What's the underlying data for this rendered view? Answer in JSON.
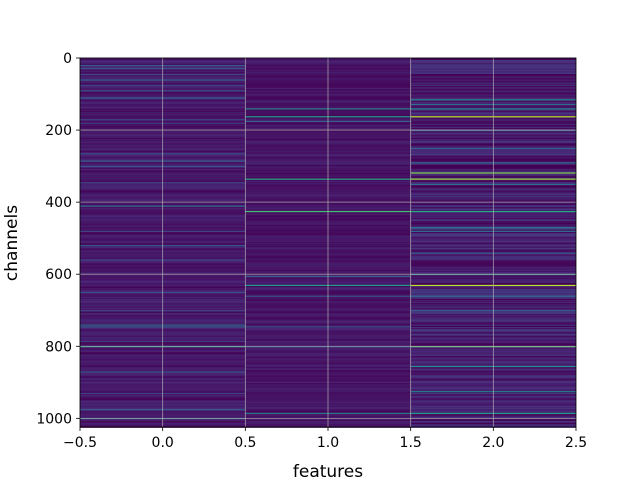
{
  "chart_data": {
    "type": "heatmap",
    "title": "",
    "xlabel": "features",
    "ylabel": "channels",
    "xlim": [
      -0.5,
      2.5
    ],
    "ylim": [
      1024,
      0
    ],
    "x_ticks": [
      -0.5,
      0.0,
      0.5,
      1.0,
      1.5,
      2.0,
      2.5
    ],
    "x_tick_labels": [
      "−0.5",
      "0.0",
      "0.5",
      "1.0",
      "1.5",
      "2.0",
      "2.5"
    ],
    "y_ticks": [
      0,
      200,
      400,
      600,
      800,
      1000
    ],
    "y_tick_labels": [
      "0",
      "200",
      "400",
      "600",
      "800",
      "1000"
    ],
    "grid": true,
    "colormap": "viridis",
    "n_rows": 1024,
    "columns": [
      {
        "feature": 0,
        "base_value": 0.06,
        "noise": 0.05,
        "highlighted_rows": [
          {
            "row": 20,
            "value": 0.3
          },
          {
            "row": 28,
            "value": 0.25
          },
          {
            "row": 45,
            "value": 0.2
          },
          {
            "row": 60,
            "value": 0.3
          },
          {
            "row": 75,
            "value": 0.2
          },
          {
            "row": 90,
            "value": 0.25
          },
          {
            "row": 110,
            "value": 0.3
          },
          {
            "row": 170,
            "value": 0.2
          },
          {
            "row": 180,
            "value": 0.2
          },
          {
            "row": 265,
            "value": 0.25
          },
          {
            "row": 285,
            "value": 0.3
          },
          {
            "row": 300,
            "value": 0.25
          },
          {
            "row": 345,
            "value": 0.2
          },
          {
            "row": 410,
            "value": 0.35
          },
          {
            "row": 480,
            "value": 0.2
          },
          {
            "row": 520,
            "value": 0.3
          },
          {
            "row": 560,
            "value": 0.2
          },
          {
            "row": 650,
            "value": 0.25
          },
          {
            "row": 700,
            "value": 0.2
          },
          {
            "row": 740,
            "value": 0.35
          },
          {
            "row": 745,
            "value": 0.3
          },
          {
            "row": 785,
            "value": 0.2
          },
          {
            "row": 800,
            "value": 0.55
          },
          {
            "row": 870,
            "value": 0.25
          },
          {
            "row": 930,
            "value": 0.2
          },
          {
            "row": 975,
            "value": 0.3
          },
          {
            "row": 1000,
            "value": 0.35
          }
        ]
      },
      {
        "feature": 1,
        "base_value": 0.05,
        "noise": 0.04,
        "highlighted_rows": [
          {
            "row": 140,
            "value": 0.45
          },
          {
            "row": 162,
            "value": 0.55
          },
          {
            "row": 175,
            "value": 0.3
          },
          {
            "row": 335,
            "value": 0.6
          },
          {
            "row": 425,
            "value": 0.7
          },
          {
            "row": 605,
            "value": 0.3
          },
          {
            "row": 630,
            "value": 0.55
          },
          {
            "row": 660,
            "value": 0.25
          },
          {
            "row": 745,
            "value": 0.25
          },
          {
            "row": 800,
            "value": 0.3
          },
          {
            "row": 985,
            "value": 0.4
          }
        ]
      },
      {
        "feature": 2,
        "base_value": 0.08,
        "noise": 0.09,
        "highlighted_rows": [
          {
            "row": 115,
            "value": 0.5
          },
          {
            "row": 128,
            "value": 0.35
          },
          {
            "row": 140,
            "value": 0.45
          },
          {
            "row": 162,
            "value": 0.9
          },
          {
            "row": 200,
            "value": 0.3
          },
          {
            "row": 250,
            "value": 0.3
          },
          {
            "row": 290,
            "value": 0.35
          },
          {
            "row": 318,
            "value": 0.8
          },
          {
            "row": 335,
            "value": 0.85
          },
          {
            "row": 350,
            "value": 0.35
          },
          {
            "row": 425,
            "value": 0.6
          },
          {
            "row": 470,
            "value": 0.4
          },
          {
            "row": 480,
            "value": 0.35
          },
          {
            "row": 540,
            "value": 0.3
          },
          {
            "row": 600,
            "value": 0.45
          },
          {
            "row": 630,
            "value": 0.9
          },
          {
            "row": 660,
            "value": 0.35
          },
          {
            "row": 700,
            "value": 0.3
          },
          {
            "row": 800,
            "value": 0.7
          },
          {
            "row": 855,
            "value": 0.5
          },
          {
            "row": 925,
            "value": 0.45
          },
          {
            "row": 985,
            "value": 0.55
          }
        ]
      }
    ]
  }
}
